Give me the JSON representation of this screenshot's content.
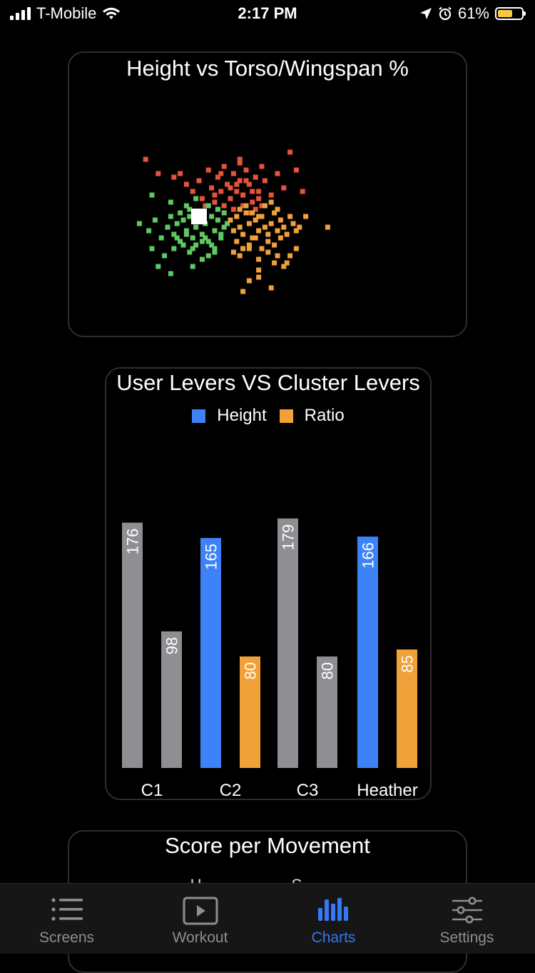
{
  "status_bar": {
    "carrier": "T-Mobile",
    "time": "2:17 PM",
    "battery_percent": "61%",
    "battery_level": 0.61,
    "battery_color": "#f5c640"
  },
  "scatter_card": {
    "title": "Height vs Torso/Wingspan %",
    "chart_data": {
      "type": "scatter",
      "title": "Height vs Torso/Wingspan %",
      "grid": false,
      "series": [
        {
          "color": "#e5533d",
          "x": [
            -2.7,
            -2.3,
            -1.8,
            -1.6,
            -1.4,
            -1.2,
            -1.0,
            -0.9,
            -0.7,
            -0.6,
            -0.5,
            -0.4,
            -0.4,
            -0.3,
            -0.2,
            -0.1,
            0.0,
            0.1,
            0.2,
            0.3,
            0.3,
            0.4,
            0.5,
            0.6,
            0.7,
            0.8,
            0.9,
            1.0,
            1.1,
            1.3,
            1.5,
            1.7,
            1.9,
            2.1,
            2.3,
            -0.2,
            0.1,
            0.4,
            0.6,
            0.8,
            -0.5,
            0.0,
            0.5,
            0.9,
            -0.8,
            -0.3,
            0.2,
            0.7,
            1.0,
            0.3
          ],
          "y": [
            1.9,
            1.5,
            1.4,
            1.5,
            1.2,
            1.0,
            1.3,
            0.8,
            1.6,
            1.1,
            0.7,
            1.4,
            0.5,
            1.0,
            1.7,
            1.2,
            0.8,
            1.5,
            1.0,
            1.8,
            1.3,
            0.9,
            1.6,
            1.2,
            0.7,
            1.4,
            1.0,
            1.7,
            1.3,
            0.9,
            1.5,
            1.1,
            2.1,
            1.6,
            1.0,
            0.6,
            0.5,
            0.6,
            0.4,
            0.5,
            0.9,
            1.1,
            1.3,
            0.8,
            0.6,
            1.5,
            1.2,
            1.0,
            0.6,
            1.9
          ]
        },
        {
          "color": "#5ec862",
          "x": [
            -2.9,
            -2.6,
            -2.4,
            -2.2,
            -2.0,
            -1.9,
            -1.8,
            -1.7,
            -1.6,
            -1.5,
            -1.4,
            -1.3,
            -1.2,
            -1.1,
            -1.0,
            -0.9,
            -0.8,
            -0.7,
            -0.6,
            -0.5,
            -0.4,
            -0.3,
            -0.2,
            -0.1,
            -1.8,
            -1.5,
            -1.2,
            -0.9,
            -0.6,
            -0.3,
            -1.6,
            -1.3,
            -1.0,
            -0.7,
            -0.4,
            -1.4,
            -1.1,
            -0.8,
            -0.5,
            -0.2,
            -2.5,
            -2.1,
            -1.7,
            -1.3,
            -0.9,
            -0.5,
            -2.3,
            -1.9,
            -1.2,
            -0.7,
            -2.5,
            -1.9,
            -1.4,
            -1.1
          ],
          "y": [
            0.1,
            -0.1,
            0.2,
            -0.3,
            0.0,
            0.3,
            -0.2,
            0.1,
            -0.4,
            0.2,
            -0.1,
            0.3,
            -0.3,
            0.0,
            0.2,
            -0.2,
            0.1,
            -0.4,
            0.3,
            -0.1,
            0.2,
            -0.3,
            0.0,
            0.1,
            -0.6,
            -0.5,
            -0.6,
            -0.4,
            -0.5,
            -0.2,
            0.4,
            0.5,
            0.4,
            0.6,
            0.5,
            -0.2,
            -0.5,
            -0.3,
            -0.6,
            0.4,
            -0.6,
            -0.8,
            -0.3,
            -0.7,
            -0.9,
            -0.7,
            -1.1,
            -1.3,
            -1.1,
            -0.8,
            0.9,
            0.7,
            0.6,
            0.8
          ]
        },
        {
          "color": "#f0a13a",
          "x": [
            0.0,
            0.1,
            0.2,
            0.3,
            0.4,
            0.5,
            0.6,
            0.7,
            0.8,
            0.9,
            1.0,
            1.1,
            1.2,
            1.3,
            1.4,
            1.5,
            1.6,
            1.7,
            1.8,
            1.9,
            2.0,
            2.1,
            2.2,
            0.2,
            0.4,
            0.6,
            0.8,
            1.0,
            1.2,
            1.4,
            1.6,
            0.3,
            0.5,
            0.7,
            0.9,
            1.1,
            1.3,
            1.5,
            0.1,
            0.3,
            0.6,
            0.9,
            1.2,
            1.5,
            1.8,
            2.1,
            0.9,
            1.4,
            1.9,
            2.4,
            3.1,
            0.4,
            0.6,
            0.9,
            1.3,
            1.7
          ],
          "y": [
            0.2,
            -0.1,
            0.3,
            0.0,
            -0.2,
            0.4,
            0.1,
            -0.3,
            0.2,
            -0.1,
            0.3,
            0.0,
            -0.2,
            0.1,
            0.4,
            -0.1,
            0.2,
            0.0,
            -0.2,
            0.3,
            0.1,
            -0.1,
            0.0,
            -0.4,
            -0.6,
            -0.5,
            -0.3,
            -0.6,
            -0.4,
            -0.5,
            -0.3,
            0.5,
            0.6,
            0.4,
            0.3,
            0.6,
            0.7,
            0.5,
            -0.7,
            -0.8,
            -0.6,
            -0.9,
            -0.7,
            -0.8,
            -1.0,
            -0.6,
            -1.2,
            -1.0,
            -0.8,
            0.3,
            0.0,
            -1.8,
            -1.5,
            -1.4,
            -1.7,
            -1.1
          ]
        },
        {
          "color": "#ffffff",
          "x": [
            -1.0
          ],
          "y": [
            0.3
          ],
          "highlight": true
        }
      ]
    }
  },
  "bar_card": {
    "title": "User Levers VS Cluster Levers",
    "legend": [
      {
        "label": "Height",
        "color": "#3e82f7"
      },
      {
        "label": "Ratio",
        "color": "#f0a13a"
      }
    ],
    "chart_data": {
      "type": "bar",
      "title": "User Levers VS Cluster Levers",
      "categories": [
        "C1",
        "C2",
        "C3",
        "Heather"
      ],
      "series": [
        {
          "name": "Height",
          "values": [
            176,
            165,
            179,
            166
          ]
        },
        {
          "name": "Ratio",
          "values": [
            98,
            80,
            80,
            85
          ]
        }
      ],
      "bar_colors": [
        [
          "#8e8e93",
          "#8e8e93"
        ],
        [
          "#3e82f7",
          "#f0a13a"
        ],
        [
          "#8e8e93",
          "#8e8e93"
        ],
        [
          "#3e82f7",
          "#f0a13a"
        ]
      ],
      "ylim": [
        0,
        205
      ],
      "legend_position": "top-center",
      "data_labels": true
    }
  },
  "score_card": {
    "title": "Score per Movement",
    "partial_legend": "H   S"
  },
  "tab_bar": {
    "tabs": [
      {
        "label": "Screens",
        "icon": "list-icon"
      },
      {
        "label": "Workout",
        "icon": "play-icon"
      },
      {
        "label": "Charts",
        "icon": "bar-chart-icon"
      },
      {
        "label": "Settings",
        "icon": "sliders-icon"
      }
    ],
    "active_tab": "Charts",
    "active_color": "#3478f6",
    "inactive_color": "#8e8e93"
  }
}
